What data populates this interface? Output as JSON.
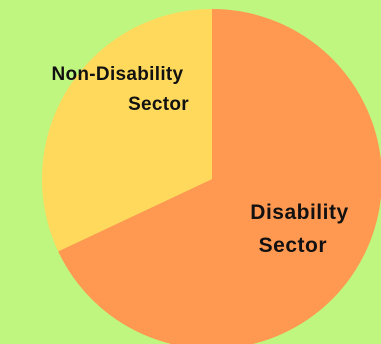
{
  "background": "#bff67f",
  "chart_data": {
    "type": "pie",
    "title": "",
    "slices": [
      {
        "label_lines": [
          "Disability",
          "Sector"
        ],
        "value": 68,
        "color": "#ff9850"
      },
      {
        "label_lines": [
          "Non-Disability",
          "Sector"
        ],
        "value": 32,
        "color": "#ffd95c"
      }
    ],
    "start_angle_deg": 0,
    "direction": "clockwise",
    "legend": "none",
    "labels": "on-slice"
  }
}
